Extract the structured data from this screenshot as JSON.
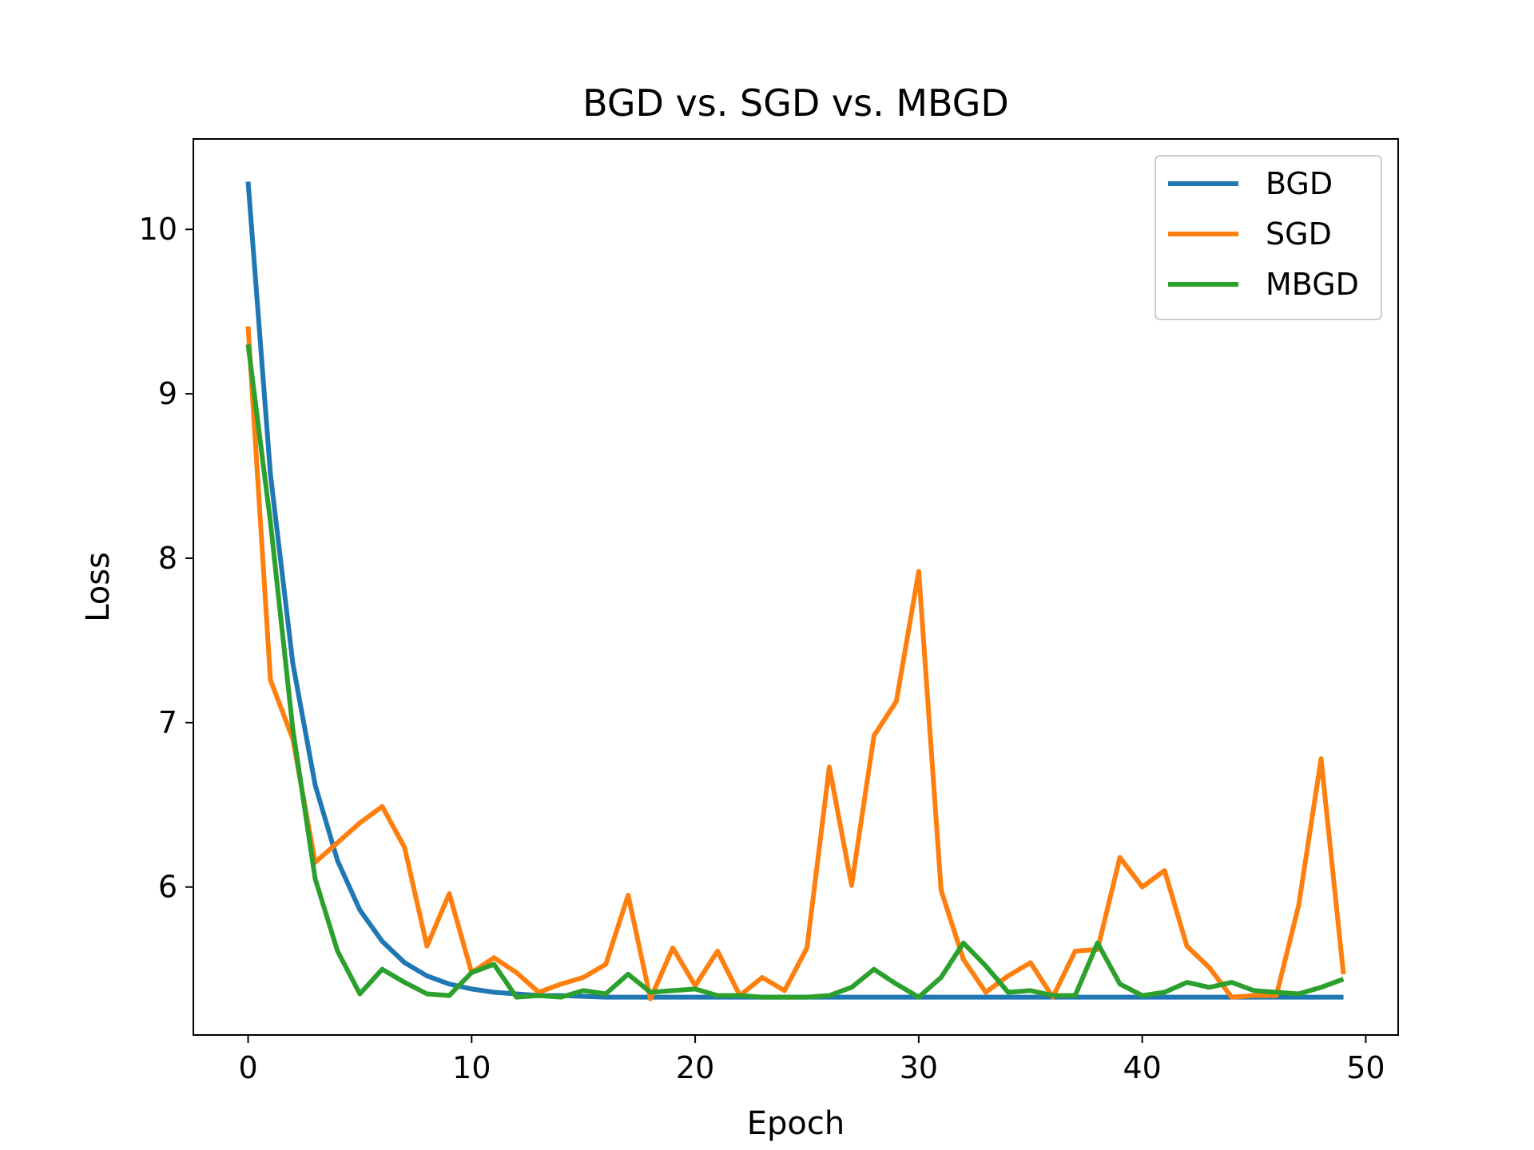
{
  "chart_data": {
    "type": "line",
    "title": "BGD vs. SGD vs. MBGD",
    "xlabel": "Epoch",
    "ylabel": "Loss",
    "xlim": [
      -2.45,
      51.45
    ],
    "ylim": [
      5.1,
      10.55
    ],
    "xticks": [
      0,
      10,
      20,
      30,
      40,
      50
    ],
    "yticks": [
      6,
      7,
      8,
      9,
      10
    ],
    "grid": false,
    "legend_position": "top-right",
    "x": [
      0,
      1,
      2,
      3,
      4,
      5,
      6,
      7,
      8,
      9,
      10,
      11,
      12,
      13,
      14,
      15,
      16,
      17,
      18,
      19,
      20,
      21,
      22,
      23,
      24,
      25,
      26,
      27,
      28,
      29,
      30,
      31,
      32,
      33,
      34,
      35,
      36,
      37,
      38,
      39,
      40,
      41,
      42,
      43,
      44,
      45,
      46,
      47,
      48,
      49
    ],
    "series": [
      {
        "name": "BGD",
        "color": "#1f77b4",
        "values": [
          10.29,
          8.51,
          7.36,
          6.62,
          6.16,
          5.86,
          5.67,
          5.54,
          5.46,
          5.41,
          5.38,
          5.36,
          5.35,
          5.34,
          5.34,
          5.335,
          5.33,
          5.33,
          5.33,
          5.33,
          5.33,
          5.33,
          5.33,
          5.33,
          5.33,
          5.33,
          5.33,
          5.33,
          5.33,
          5.33,
          5.33,
          5.33,
          5.33,
          5.33,
          5.33,
          5.33,
          5.33,
          5.33,
          5.33,
          5.33,
          5.33,
          5.33,
          5.33,
          5.33,
          5.33,
          5.33,
          5.33,
          5.33,
          5.33,
          5.33
        ]
      },
      {
        "name": "SGD",
        "color": "#ff7f0e",
        "values": [
          9.41,
          7.26,
          6.9,
          6.15,
          6.27,
          6.39,
          6.49,
          6.24,
          5.64,
          5.96,
          5.48,
          5.57,
          5.48,
          5.36,
          5.41,
          5.45,
          5.53,
          5.95,
          5.32,
          5.63,
          5.4,
          5.61,
          5.34,
          5.45,
          5.37,
          5.63,
          6.73,
          6.01,
          6.92,
          7.13,
          7.92,
          5.98,
          5.56,
          5.36,
          5.46,
          5.54,
          5.33,
          5.61,
          5.62,
          6.18,
          6.0,
          6.1,
          5.64,
          5.51,
          5.33,
          5.34,
          5.34,
          5.89,
          6.78,
          5.47
        ]
      },
      {
        "name": "MBGD",
        "color": "#2ca02c",
        "values": [
          9.3,
          8.22,
          6.96,
          6.05,
          5.61,
          5.35,
          5.5,
          5.42,
          5.35,
          5.34,
          5.48,
          5.53,
          5.33,
          5.34,
          5.33,
          5.37,
          5.35,
          5.47,
          5.36,
          5.37,
          5.38,
          5.34,
          5.34,
          5.33,
          5.33,
          5.33,
          5.34,
          5.39,
          5.5,
          5.41,
          5.33,
          5.45,
          5.66,
          5.52,
          5.36,
          5.37,
          5.34,
          5.34,
          5.66,
          5.41,
          5.34,
          5.36,
          5.42,
          5.39,
          5.42,
          5.37,
          5.36,
          5.35,
          5.39,
          5.44
        ]
      }
    ]
  }
}
